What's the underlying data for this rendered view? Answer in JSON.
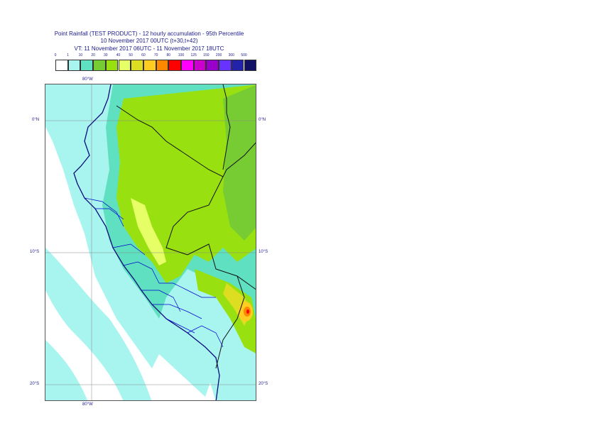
{
  "header": {
    "title_line1": "Point Rainfall (TEST PRODUCT) - 12 hourly accumulation - 95th Percentile",
    "title_line2": "10 November 2017 00UTC (t+30,t+42)",
    "title_line3": "VT: 11 November 2017 06UTC - 11 November 2017 18UTC"
  },
  "colorbar": {
    "thresholds": [
      "0",
      "1",
      "10",
      "20",
      "30",
      "40",
      "50",
      "60",
      "70",
      "80",
      "100",
      "125",
      "150",
      "200",
      "300",
      "500"
    ],
    "colors": [
      "#ffffff",
      "#a8f5f0",
      "#5fe0c0",
      "#77cc33",
      "#99e011",
      "#e6ff66",
      "#dddd22",
      "#ffcc22",
      "#ff8800",
      "#ff0000",
      "#ff00ff",
      "#cc00cc",
      "#9900cc",
      "#6633ff",
      "#2222aa",
      "#111166"
    ]
  },
  "map": {
    "lon_label_top": "80°W",
    "lon_label_bottom": "80°W",
    "lat_labels": [
      {
        "left": "0°N",
        "right": "0°N"
      },
      {
        "left": "10°S",
        "right": "10°S"
      },
      {
        "left": "20°S",
        "right": "20°S"
      }
    ],
    "extent": {
      "lon_min": -84,
      "lon_max": -68,
      "lat_min": -21,
      "lat_max": 2.7
    },
    "max_intensity_region": "south-east (near 13°S, 69°W)"
  }
}
